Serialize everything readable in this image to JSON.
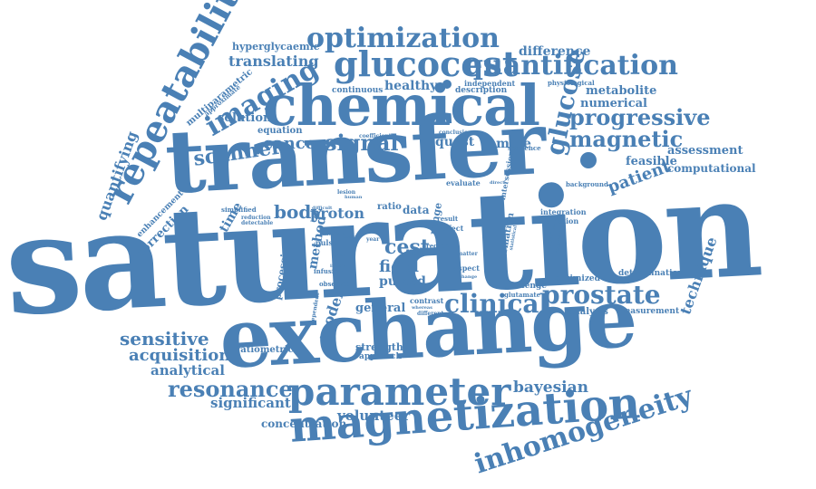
{
  "color": "#4a80b5",
  "words": [
    "saturation",
    "transfer",
    "exchange",
    "chemical",
    "magnetization",
    "parameter",
    "glucocest",
    "quantification",
    "optimization",
    "repeatability",
    "inhomogeneity",
    "prostate",
    "clinical",
    "imaging",
    "progressive",
    "glucose",
    "magnetic",
    "resonance",
    "scanner",
    "signal",
    "sensitive",
    "acquisition",
    "analytical",
    "significant",
    "bayesian",
    "volunteer",
    "concentration",
    "cancer",
    "body",
    "proton",
    "field",
    "pulsed",
    "cest",
    "rate",
    "model",
    "general",
    "technique",
    "patient",
    "translating",
    "healthy",
    "difference",
    "metabolite",
    "numerical",
    "assessment",
    "feasible",
    "computational",
    "quantifying",
    "correction",
    "enhancement",
    "solution",
    "time",
    "hyperglycaemic",
    "multiparametric",
    "approximate",
    "equation",
    "processing",
    "ratiometric",
    "strength",
    "approach",
    "continuous",
    "description",
    "independent",
    "physiological",
    "coefficient",
    "conclusion",
    "quest",
    "amide",
    "sequence",
    "evaluate",
    "background",
    "ratio",
    "data",
    "range",
    "effect",
    "result",
    "region",
    "integration",
    "variation",
    "information",
    "challenge",
    "glutamate",
    "optimized",
    "determination",
    "analysis",
    "measurement",
    "contrast",
    "different",
    "simplified",
    "reduction",
    "detectable",
    "lesion",
    "median",
    "infusion",
    "observed",
    "pulse",
    "method",
    "year",
    "dependent",
    "direct",
    "intersession",
    "simulation",
    "consistent",
    "statistical",
    "matter",
    "aspect",
    "difficult",
    "human",
    "whereas",
    "change",
    "tesla",
    "type",
    "image"
  ]
}
